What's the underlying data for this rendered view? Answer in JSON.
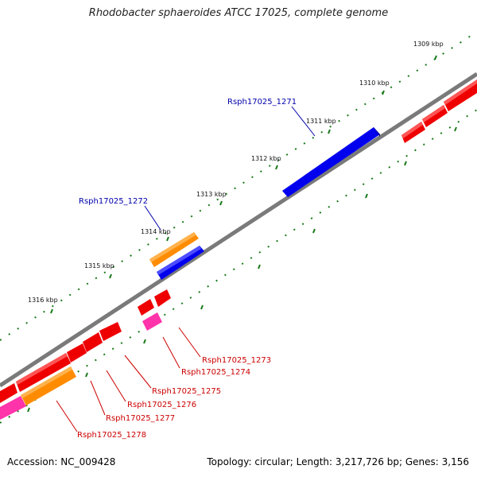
{
  "title": "Rhodobacter sphaeroides ATCC 17025, complete genome",
  "footer": {
    "accession": "Accession: NC_009428",
    "summary": "Topology: circular; Length: 3,217,726 bp; Genes: 3,156"
  },
  "ticks": [
    "1309 kbp",
    "1310 kbp",
    "1311 kbp",
    "1312 kbp",
    "1313 kbp",
    "1314 kbp",
    "1315 kbp",
    "1316 kbp"
  ],
  "gene_labels": {
    "outer": [
      "Rsph17025_1271",
      "Rsph17025_1272"
    ],
    "inner": [
      "Rsph17025_1273",
      "Rsph17025_1274",
      "Rsph17025_1275",
      "Rsph17025_1276",
      "Rsph17025_1277",
      "Rsph17025_1278"
    ]
  },
  "colors": {
    "backbone": "#7a7a7a",
    "forward_gene": "#0000ee",
    "reverse_gene": "#ee0000",
    "orange_gene": "#ff8c00",
    "magenta_gene": "#ff33aa",
    "tick": "#1a7a1a",
    "outer_label": "#0000aa",
    "inner_label": "#cc0000"
  }
}
